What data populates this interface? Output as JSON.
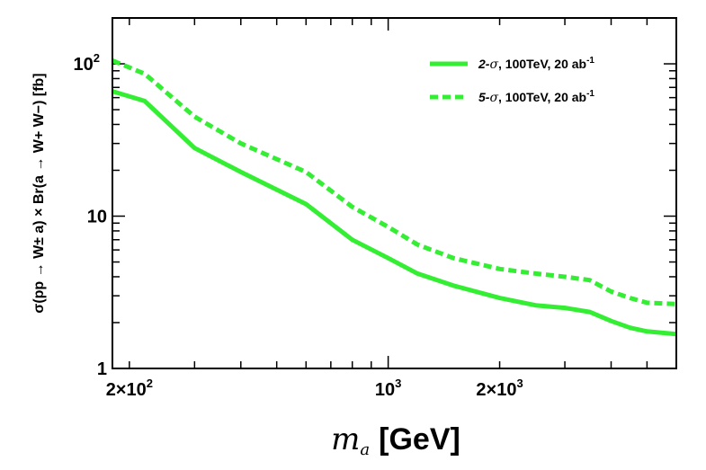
{
  "chart_data": {
    "type": "line",
    "title": "",
    "xlabel": {
      "symbol": "m",
      "subscript": "a",
      "unit": "[GeV]"
    },
    "ylabel": "σ(pp → W± a) × Br(a → W+ W−) [fb]",
    "xscale": "log",
    "yscale": "log",
    "xlim": [
      180,
      6000
    ],
    "ylim": [
      1,
      200
    ],
    "x_tick_labels": [
      {
        "value": 200,
        "mantissa": "2×10",
        "exp": "2"
      },
      {
        "value": 1000,
        "mantissa": "10",
        "exp": "3"
      },
      {
        "value": 2000,
        "mantissa": "2×10",
        "exp": "3"
      }
    ],
    "y_tick_labels": [
      {
        "value": 1,
        "mantissa": "1",
        "exp": ""
      },
      {
        "value": 10,
        "mantissa": "10",
        "exp": ""
      },
      {
        "value": 100,
        "mantissa": "10",
        "exp": "2"
      }
    ],
    "legend_position": "top-right",
    "series": [
      {
        "name": "2-σ, 100TeV, 20 ab-1",
        "legend": {
          "prefix": "2-",
          "sigma": "σ",
          "text": ", 100TeV, 20 ab",
          "sup": "-1"
        },
        "color": "#33ee33",
        "dash": "solid",
        "x": [
          180,
          220,
          300,
          400,
          600,
          800,
          1000,
          1200,
          1500,
          2000,
          2500,
          3000,
          3500,
          4000,
          4500,
          5000,
          6000
        ],
        "y": [
          66,
          57,
          28,
          19.5,
          12,
          7,
          5.3,
          4.2,
          3.5,
          2.9,
          2.6,
          2.5,
          2.35,
          2.05,
          1.85,
          1.75,
          1.68
        ]
      },
      {
        "name": "5-σ, 100TeV, 20 ab-1",
        "legend": {
          "prefix": "5-",
          "sigma": "σ",
          "text": ", 100TeV, 20 ab",
          "sup": "-1"
        },
        "color": "#33ee33",
        "dash": "dashed",
        "x": [
          180,
          220,
          300,
          400,
          600,
          800,
          1000,
          1200,
          1500,
          2000,
          2500,
          3000,
          3500,
          4000,
          4500,
          5000,
          6000
        ],
        "y": [
          105,
          86,
          45,
          30,
          19.5,
          11.5,
          8.5,
          6.5,
          5.3,
          4.5,
          4.2,
          4.0,
          3.8,
          3.2,
          2.9,
          2.7,
          2.65
        ]
      }
    ]
  }
}
